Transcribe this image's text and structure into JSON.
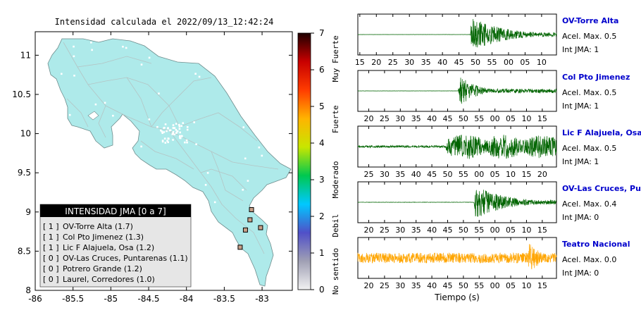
{
  "chart_data": [
    {
      "type": "map",
      "title": "Intensidad calculada el 2022/09/13_12:42:24",
      "xlim": [
        -86,
        -82.6
      ],
      "ylim": [
        8,
        11.3
      ],
      "x_ticks": [
        -86,
        -85.5,
        -85,
        -84.5,
        -84,
        -83.5,
        -83
      ],
      "y_ticks": [
        8,
        8.5,
        9,
        9.5,
        10,
        10.5,
        11
      ],
      "land_color": "#aeeaea",
      "colorbar": {
        "min": 0,
        "max": 7,
        "ticks": [
          0,
          1,
          2,
          3,
          4,
          5,
          6,
          7
        ],
        "labels": [
          "No sentido",
          "Debil",
          "Moderado",
          "Fuerte",
          "Muy Fuerte"
        ],
        "colors": [
          "#f2f2f2",
          "#a0a0b4",
          "#5050c8",
          "#00c8ff",
          "#00c850",
          "#c8e600",
          "#ffb400",
          "#ff3c00",
          "#c80000",
          "#1e0000"
        ]
      },
      "legend": {
        "title": "INTENSIDAD JMA [0 a 7]",
        "entries": [
          {
            "class": "[ 1 ]",
            "text": "OV-Torre Alta (1.7)"
          },
          {
            "class": "[ 1 ]",
            "text": "Col Pto Jimenez (1.3)"
          },
          {
            "class": "[ 1 ]",
            "text": "Lic F Alajuela, Osa (1.2)"
          },
          {
            "class": "[ 0 ]",
            "text": "OV-Las Cruces, Puntarenas (1.1)"
          },
          {
            "class": "[ 0 ]",
            "text": "Potrero Grande (1.2)"
          },
          {
            "class": "[ 0 ]",
            "text": "Laurel, Corredores (1.0)"
          }
        ]
      },
      "stations": [
        {
          "lon": -83.14,
          "lat": 9.03
        },
        {
          "lon": -83.16,
          "lat": 8.9
        },
        {
          "lon": -83.02,
          "lat": 8.8
        },
        {
          "lon": -83.22,
          "lat": 8.77
        },
        {
          "lon": -83.29,
          "lat": 8.55
        }
      ]
    },
    {
      "type": "line",
      "xlabel": "Tiempo (s)",
      "series": [
        {
          "name": "OV-Torre Alta",
          "color": "#006400",
          "acel_label": "Acel. Max. 0.5",
          "jma_label": "Int JMA: 1",
          "tick_labels": [
            "15",
            "20",
            "25",
            "30",
            "35",
            "40",
            "45",
            "50",
            "55",
            "00",
            "05",
            "10"
          ],
          "onset": 0.565,
          "pre_amp": 0.003,
          "amp": 1.0,
          "decay": 3.0
        },
        {
          "name": "Col Pto Jimenez",
          "color": "#006400",
          "acel_label": "Acel. Max. 0.5",
          "jma_label": "Int JMA: 1",
          "tick_labels": [
            "20",
            "25",
            "30",
            "35",
            "40",
            "45",
            "50",
            "55",
            "00",
            "05",
            "10",
            "15"
          ],
          "onset": 0.505,
          "pre_amp": 0.005,
          "amp": 0.95,
          "decay": 7.0
        },
        {
          "name": "Lic F Alajuela, Osa",
          "color": "#006400",
          "acel_label": "Acel. Max. 0.5",
          "jma_label": "Int JMA: 1",
          "tick_labels": [
            "25",
            "30",
            "35",
            "40",
            "45",
            "50",
            "55",
            "00",
            "05",
            "10",
            "15",
            "20"
          ],
          "onset": 0.445,
          "pre_amp": 0.06,
          "amp": 1.0,
          "decay": 1.8
        },
        {
          "name": "OV-Las Cruces, Puntar",
          "color": "#006400",
          "acel_label": "Acel. Max. 0.4",
          "jma_label": "Int JMA: 0",
          "tick_labels": [
            "20",
            "25",
            "30",
            "35",
            "40",
            "45",
            "50",
            "55",
            "00",
            "05",
            "10",
            "15"
          ],
          "onset": 0.585,
          "pre_amp": 0.01,
          "amp": 1.0,
          "decay": 3.2
        },
        {
          "name": "Teatro Nacional",
          "color": "#ffa500",
          "acel_label": "Acel. Max. 0.0",
          "jma_label": "Int JMA: 0",
          "tick_labels": [
            "20",
            "25",
            "30",
            "35",
            "40",
            "45",
            "50",
            "55",
            "00",
            "05",
            "10",
            "15"
          ],
          "onset": 0.86,
          "pre_amp": 0.28,
          "amp": 1.0,
          "decay": 2.0
        }
      ]
    }
  ]
}
